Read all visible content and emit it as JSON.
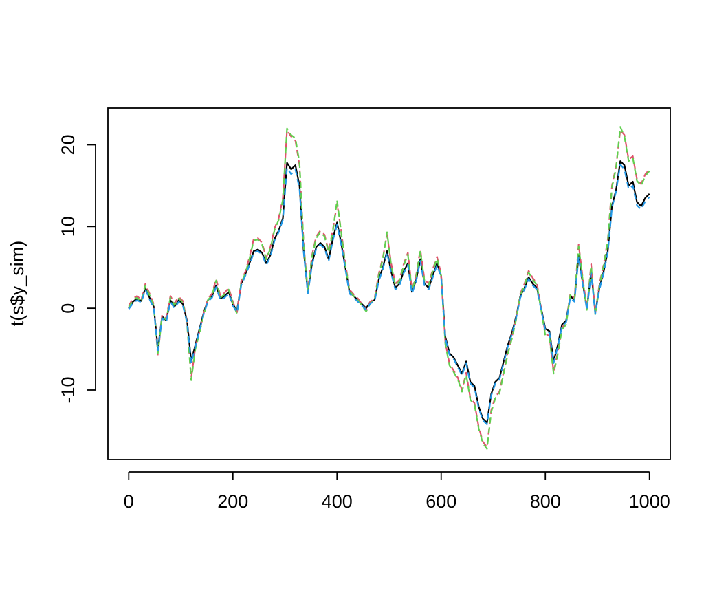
{
  "chart_data": {
    "type": "line",
    "title": "",
    "xlabel": "",
    "ylabel": "t(s$y_sim)",
    "xlim": [
      -40,
      1040
    ],
    "ylim": [
      -18.5,
      24.5
    ],
    "x_ticks": [
      0,
      200,
      400,
      600,
      800,
      1000
    ],
    "y_ticks": [
      -10,
      0,
      10,
      20
    ],
    "x_tick_labels": [
      "0",
      "200",
      "400",
      "600",
      "800",
      "1000"
    ],
    "y_tick_labels": [
      "-10",
      "0",
      "10",
      "20"
    ],
    "grid": false,
    "legend": "none",
    "series": [
      {
        "color": "#000000",
        "dash": "solid",
        "x": [
          0,
          8,
          16,
          24,
          32,
          40,
          48,
          56,
          64,
          72,
          80,
          88,
          96,
          104,
          112,
          120,
          128,
          136,
          144,
          152,
          160,
          168,
          176,
          184,
          192,
          200,
          208,
          216,
          224,
          232,
          240,
          248,
          256,
          264,
          272,
          280,
          288,
          296,
          304,
          312,
          320,
          328,
          336,
          344,
          352,
          360,
          368,
          376,
          384,
          392,
          400,
          408,
          416,
          424,
          432,
          440,
          448,
          456,
          464,
          472,
          480,
          488,
          496,
          504,
          512,
          520,
          528,
          536,
          544,
          552,
          560,
          568,
          576,
          584,
          592,
          600,
          608,
          616,
          624,
          632,
          640,
          648,
          656,
          664,
          672,
          680,
          688,
          696,
          704,
          712,
          720,
          728,
          736,
          744,
          752,
          760,
          768,
          776,
          784,
          792,
          800,
          808,
          816,
          824,
          832,
          840,
          848,
          856,
          864,
          872,
          880,
          888,
          896,
          904,
          912,
          920,
          928,
          936,
          944,
          952,
          960,
          968,
          976,
          984,
          992,
          1000
        ],
        "y": [
          0.0,
          0.8,
          1.2,
          0.9,
          2.5,
          1.3,
          0.2,
          -5.0,
          -1.0,
          -1.5,
          1.0,
          0.2,
          1.0,
          0.5,
          -1.5,
          -6.5,
          -4.5,
          -2.5,
          -0.5,
          1.0,
          1.5,
          2.8,
          1.2,
          1.5,
          2.0,
          0.5,
          -0.3,
          3.0,
          4.2,
          5.5,
          7.0,
          7.2,
          6.8,
          5.5,
          6.5,
          8.5,
          9.5,
          11.0,
          17.8,
          17.0,
          17.5,
          15.0,
          7.0,
          2.0,
          5.5,
          7.5,
          8.0,
          7.5,
          6.0,
          8.5,
          10.5,
          8.0,
          5.0,
          2.0,
          1.5,
          1.0,
          0.5,
          0.0,
          0.8,
          1.0,
          3.5,
          5.0,
          7.0,
          4.5,
          2.5,
          3.0,
          4.5,
          5.5,
          2.0,
          3.5,
          6.0,
          3.0,
          2.5,
          4.0,
          5.5,
          4.0,
          -3.5,
          -5.5,
          -6.0,
          -7.0,
          -8.0,
          -6.5,
          -9.0,
          -9.5,
          -12.0,
          -13.5,
          -14.0,
          -10.5,
          -9.0,
          -8.5,
          -6.5,
          -4.5,
          -3.0,
          -1.0,
          1.5,
          2.5,
          3.8,
          3.0,
          2.5,
          0.0,
          -2.5,
          -2.8,
          -6.5,
          -4.5,
          -2.0,
          -1.5,
          1.5,
          1.0,
          6.5,
          3.0,
          0.0,
          4.5,
          -0.5,
          2.5,
          4.5,
          7.0,
          12.5,
          14.5,
          18.0,
          17.5,
          15.0,
          15.5,
          13.0,
          12.5,
          13.5,
          14.0
        ]
      },
      {
        "color": "#DF536B",
        "dash": "dashed",
        "x": [
          0,
          8,
          16,
          24,
          32,
          40,
          48,
          56,
          64,
          72,
          80,
          88,
          96,
          104,
          112,
          120,
          128,
          136,
          144,
          152,
          160,
          168,
          176,
          184,
          192,
          200,
          208,
          216,
          224,
          232,
          240,
          248,
          256,
          264,
          272,
          280,
          288,
          296,
          304,
          312,
          320,
          328,
          336,
          344,
          352,
          360,
          368,
          376,
          384,
          392,
          400,
          408,
          416,
          424,
          432,
          440,
          448,
          456,
          464,
          472,
          480,
          488,
          496,
          504,
          512,
          520,
          528,
          536,
          544,
          552,
          560,
          568,
          576,
          584,
          592,
          600,
          608,
          616,
          624,
          632,
          640,
          648,
          656,
          664,
          672,
          680,
          688,
          696,
          704,
          712,
          720,
          728,
          736,
          744,
          752,
          760,
          768,
          776,
          784,
          792,
          800,
          808,
          816,
          824,
          832,
          840,
          848,
          856,
          864,
          872,
          880,
          888,
          896,
          904,
          912,
          920,
          928,
          936,
          944,
          952,
          960,
          968,
          976,
          984,
          992,
          1000
        ],
        "y": [
          0.3,
          1.2,
          1.5,
          1.0,
          3.0,
          1.8,
          0.5,
          -5.8,
          -0.8,
          -1.2,
          1.5,
          0.6,
          1.4,
          0.9,
          -1.7,
          -8.5,
          -4.8,
          -2.8,
          -0.6,
          1.2,
          1.8,
          3.6,
          1.5,
          1.9,
          2.5,
          0.8,
          -0.5,
          3.3,
          4.5,
          6.3,
          8.5,
          8.6,
          8.0,
          6.2,
          7.5,
          9.8,
          11.0,
          13.5,
          21.8,
          21.0,
          20.5,
          17.5,
          7.8,
          2.2,
          6.5,
          8.8,
          9.5,
          9.0,
          7.0,
          9.6,
          12.8,
          9.5,
          5.5,
          2.3,
          1.7,
          1.2,
          0.5,
          -0.2,
          0.8,
          1.2,
          4.2,
          6.2,
          9.0,
          5.5,
          3.0,
          3.5,
          5.4,
          6.8,
          2.3,
          4.1,
          7.2,
          3.5,
          3.0,
          4.8,
          6.3,
          4.2,
          -4.2,
          -6.8,
          -7.6,
          -8.5,
          -10.0,
          -7.9,
          -11.0,
          -11.6,
          -14.5,
          -16.3,
          -17.0,
          -12.5,
          -10.8,
          -10.2,
          -7.8,
          -5.4,
          -3.5,
          -1.2,
          1.8,
          3.0,
          4.6,
          3.7,
          3.0,
          0.0,
          -3.1,
          -3.4,
          -7.8,
          -5.4,
          -2.4,
          -1.8,
          1.8,
          1.2,
          7.8,
          3.6,
          0.0,
          5.4,
          -0.6,
          3.0,
          5.4,
          8.4,
          15.0,
          17.4,
          21.8,
          21.2,
          18.2,
          18.6,
          15.8,
          15.2,
          16.4,
          17.0
        ]
      },
      {
        "color": "#61D04F",
        "dash": "dashed",
        "x": [
          0,
          8,
          16,
          24,
          32,
          40,
          48,
          56,
          64,
          72,
          80,
          88,
          96,
          104,
          112,
          120,
          128,
          136,
          144,
          152,
          160,
          168,
          176,
          184,
          192,
          200,
          208,
          216,
          224,
          232,
          240,
          248,
          256,
          264,
          272,
          280,
          288,
          296,
          304,
          312,
          320,
          328,
          336,
          344,
          352,
          360,
          368,
          376,
          384,
          392,
          400,
          408,
          416,
          424,
          432,
          440,
          448,
          456,
          464,
          472,
          480,
          488,
          496,
          504,
          512,
          520,
          528,
          536,
          544,
          552,
          560,
          568,
          576,
          584,
          592,
          600,
          608,
          616,
          624,
          632,
          640,
          648,
          656,
          664,
          672,
          680,
          688,
          696,
          704,
          712,
          720,
          728,
          736,
          744,
          752,
          760,
          768,
          776,
          784,
          792,
          800,
          808,
          816,
          824,
          832,
          840,
          848,
          856,
          864,
          872,
          880,
          888,
          896,
          904,
          912,
          920,
          928,
          936,
          944,
          952,
          960,
          968,
          976,
          984,
          992,
          1000
        ],
        "y": [
          0.1,
          1.0,
          1.3,
          0.8,
          2.8,
          1.6,
          0.3,
          -5.5,
          -1.0,
          -1.4,
          1.3,
          0.4,
          1.2,
          0.7,
          -1.9,
          -8.8,
          -5.0,
          -3.0,
          -0.8,
          1.0,
          1.6,
          3.4,
          1.3,
          1.7,
          2.3,
          0.6,
          -0.7,
          3.1,
          4.3,
          6.1,
          8.3,
          8.4,
          7.8,
          6.0,
          7.3,
          9.6,
          10.8,
          13.3,
          22.0,
          21.2,
          20.8,
          17.8,
          7.6,
          2.0,
          6.3,
          8.6,
          9.3,
          8.8,
          6.8,
          9.4,
          13.2,
          9.3,
          5.3,
          2.1,
          1.5,
          1.0,
          0.3,
          -0.4,
          0.6,
          1.0,
          4.0,
          6.0,
          9.3,
          5.3,
          2.8,
          3.3,
          5.2,
          6.6,
          2.1,
          3.9,
          7.0,
          3.3,
          2.8,
          4.6,
          6.1,
          4.0,
          -4.4,
          -7.0,
          -7.8,
          -8.7,
          -10.2,
          -8.1,
          -11.2,
          -11.8,
          -14.7,
          -16.5,
          -17.2,
          -12.7,
          -11.0,
          -10.4,
          -8.0,
          -5.6,
          -3.7,
          -1.4,
          1.6,
          2.8,
          4.4,
          3.5,
          2.8,
          -0.2,
          -3.3,
          -3.6,
          -8.0,
          -5.6,
          -2.6,
          -2.0,
          1.6,
          1.0,
          7.6,
          3.4,
          -0.2,
          5.2,
          -0.8,
          2.8,
          5.2,
          8.2,
          14.8,
          17.2,
          22.2,
          21.0,
          18.0,
          18.4,
          15.6,
          15.0,
          16.2,
          16.8
        ]
      },
      {
        "color": "#2297E6",
        "dash": "dashed",
        "x": [
          0,
          8,
          16,
          24,
          32,
          40,
          48,
          56,
          64,
          72,
          80,
          88,
          96,
          104,
          112,
          120,
          128,
          136,
          144,
          152,
          160,
          168,
          176,
          184,
          192,
          200,
          208,
          216,
          224,
          232,
          240,
          248,
          256,
          264,
          272,
          280,
          288,
          296,
          304,
          312,
          320,
          328,
          336,
          344,
          352,
          360,
          368,
          376,
          384,
          392,
          400,
          408,
          416,
          424,
          432,
          440,
          448,
          456,
          464,
          472,
          480,
          488,
          496,
          504,
          512,
          520,
          528,
          536,
          544,
          552,
          560,
          568,
          576,
          584,
          592,
          600,
          608,
          616,
          624,
          632,
          640,
          648,
          656,
          664,
          672,
          680,
          688,
          696,
          704,
          712,
          720,
          728,
          736,
          744,
          752,
          760,
          768,
          776,
          784,
          792,
          800,
          808,
          816,
          824,
          832,
          840,
          848,
          856,
          864,
          872,
          880,
          888,
          896,
          904,
          912,
          920,
          928,
          936,
          944,
          952,
          960,
          968,
          976,
          984,
          992,
          1000
        ],
        "y": [
          -0.1,
          0.6,
          1.0,
          0.7,
          2.3,
          1.1,
          0.0,
          -5.2,
          -1.2,
          -1.7,
          0.8,
          0.0,
          0.8,
          0.3,
          -1.7,
          -6.7,
          -4.7,
          -2.7,
          -0.7,
          0.8,
          1.3,
          2.6,
          1.0,
          1.3,
          1.8,
          0.3,
          -0.5,
          2.8,
          4.0,
          5.3,
          6.8,
          7.0,
          6.6,
          5.3,
          6.3,
          8.3,
          9.3,
          10.8,
          17.2,
          16.4,
          17.0,
          14.6,
          6.8,
          1.8,
          5.3,
          7.3,
          7.8,
          7.3,
          5.8,
          8.3,
          10.2,
          7.8,
          4.8,
          1.8,
          1.3,
          0.8,
          0.3,
          -0.2,
          0.6,
          0.8,
          3.3,
          4.8,
          6.8,
          4.3,
          2.3,
          2.8,
          4.3,
          5.3,
          1.8,
          3.3,
          5.8,
          2.8,
          2.3,
          3.8,
          5.3,
          3.8,
          -3.7,
          -5.7,
          -6.2,
          -7.2,
          -8.2,
          -6.7,
          -9.2,
          -9.7,
          -12.2,
          -13.7,
          -14.2,
          -10.7,
          -9.2,
          -8.7,
          -6.7,
          -4.7,
          -3.2,
          -1.2,
          1.3,
          2.3,
          3.6,
          2.8,
          2.3,
          -0.2,
          -2.7,
          -3.0,
          -6.7,
          -4.7,
          -2.2,
          -1.7,
          1.3,
          0.8,
          6.3,
          2.8,
          -0.2,
          4.3,
          -0.7,
          2.3,
          4.3,
          6.8,
          12.3,
          14.3,
          17.6,
          17.0,
          14.6,
          15.0,
          12.6,
          12.1,
          13.1,
          13.6
        ]
      }
    ]
  }
}
